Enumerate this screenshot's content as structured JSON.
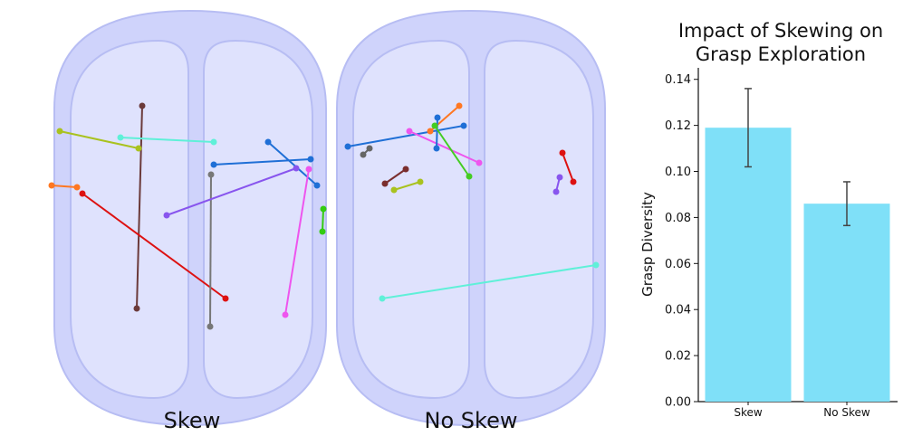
{
  "panels": {
    "left_label": "Skew",
    "right_label": "No Skew"
  },
  "colors": {
    "bin_fill": "#cfd3fb",
    "bin_inner": "#dfe2fd",
    "bin_edge": "#b7bdf3",
    "bar": "#7fe0f8",
    "errorbar": "#444444"
  },
  "grasp_segments": {
    "skew": [
      {
        "color": "#6b3a3a"
      },
      {
        "color": "#a9c21f"
      },
      {
        "color": "#5ff0d8"
      },
      {
        "color": "#ff7722"
      },
      {
        "color": "#dd1111"
      },
      {
        "color": "#777777"
      },
      {
        "color": "#1f6fd6"
      },
      {
        "color": "#1f6fd6"
      },
      {
        "color": "#8855ee"
      },
      {
        "color": "#ee55ee"
      },
      {
        "color": "#33cc11"
      }
    ],
    "no_skew": [
      {
        "color": "#1f6fd6"
      },
      {
        "color": "#666666"
      },
      {
        "color": "#ee55ee"
      },
      {
        "color": "#ff7722"
      },
      {
        "color": "#1f6fd6"
      },
      {
        "color": "#44cc22"
      },
      {
        "color": "#7a2e2e"
      },
      {
        "color": "#a9c21f"
      },
      {
        "color": "#dd1111"
      },
      {
        "color": "#8855ee"
      },
      {
        "color": "#5ff0d8"
      }
    ]
  },
  "chart_data": {
    "type": "bar",
    "title": "Impact of Skewing on Grasp Exploration",
    "title_lines": [
      "Impact of Skewing on",
      "Grasp Exploration"
    ],
    "categories": [
      "Skew",
      "No Skew"
    ],
    "values": [
      0.119,
      0.086
    ],
    "errors": [
      0.017,
      0.0095
    ],
    "xlabel": "",
    "ylabel": "Grasp Diversity",
    "ylim": [
      0.0,
      0.145
    ],
    "yticks": [
      "0.00",
      "0.02",
      "0.04",
      "0.06",
      "0.08",
      "0.10",
      "0.12",
      "0.14"
    ],
    "grid": false
  }
}
